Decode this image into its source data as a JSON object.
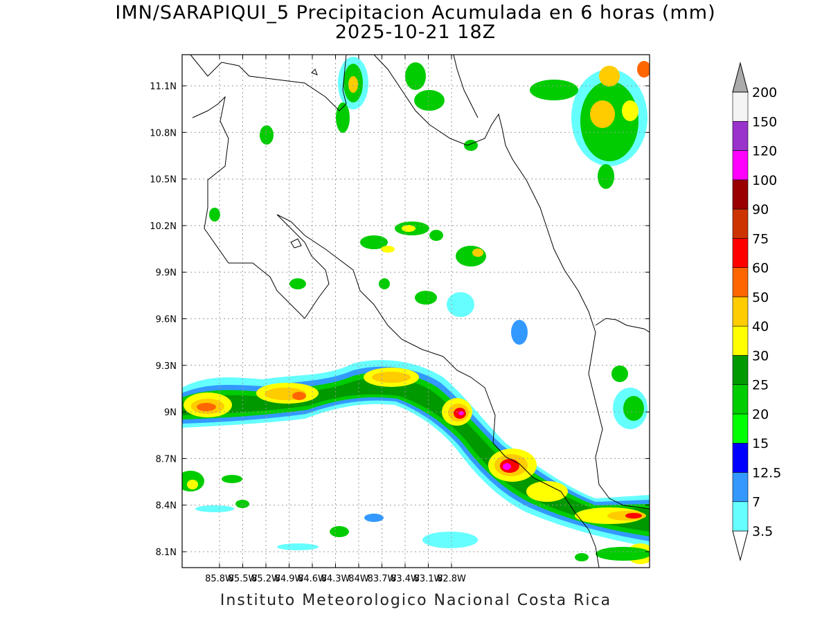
{
  "title": {
    "line1": "IMN/SARAPIQUI_5 Precipitacion Acumulada en 6 horas (mm)",
    "line2": "2025-10-21 18Z"
  },
  "footer": "Instituto Meteorologico Nacional Costa Rica",
  "axes": {
    "lon_labels": [
      "85.8W",
      "85.5W",
      "85.2W",
      "84.9W",
      "84.6W",
      "84.3W",
      "84W",
      "83.7W",
      "83.4W",
      "83.1W",
      "82.8W"
    ],
    "lat_labels": [
      "11.1N",
      "10.8N",
      "10.5N",
      "10.2N",
      "9.9N",
      "9.6N",
      "9.3N",
      "9N",
      "8.7N",
      "8.4N",
      "8.1N"
    ]
  },
  "colorbar": {
    "levels": [
      {
        "label": "3.5",
        "color": "#66ffff"
      },
      {
        "label": "7",
        "color": "#3399ff"
      },
      {
        "label": "12.5",
        "color": "#0000ff"
      },
      {
        "label": "15",
        "color": "#00ff00"
      },
      {
        "label": "20",
        "color": "#00cc00"
      },
      {
        "label": "25",
        "color": "#009900"
      },
      {
        "label": "30",
        "color": "#ffff00"
      },
      {
        "label": "40",
        "color": "#ffcc00"
      },
      {
        "label": "50",
        "color": "#ff6600"
      },
      {
        "label": "60",
        "color": "#ff0000"
      },
      {
        "label": "75",
        "color": "#cc3300"
      },
      {
        "label": "90",
        "color": "#990000"
      },
      {
        "label": "100",
        "color": "#ff00ff"
      },
      {
        "label": "120",
        "color": "#9933cc"
      },
      {
        "label": "150",
        "color": "#f4f4f4"
      },
      {
        "label": "200",
        "color": "#aaaaaa"
      }
    ]
  }
}
